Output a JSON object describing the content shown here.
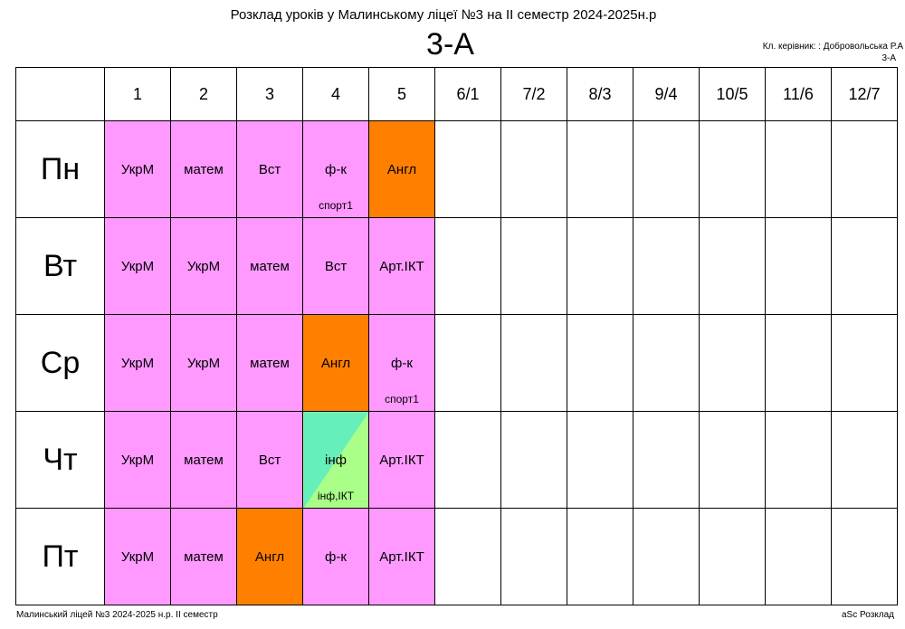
{
  "header": {
    "title": "Розклад уроків у Малинському ліцеї №3 на ІІ семестр 2024-2025н.р",
    "class_name": "3-А",
    "teacher": "Кл. керівник: : Добровольська Р.А",
    "class_small": "3-А"
  },
  "periods": [
    "1",
    "2",
    "3",
    "4",
    "5",
    "6/1",
    "7/2",
    "8/3",
    "9/4",
    "10/5",
    "11/6",
    "12/7"
  ],
  "days": [
    {
      "name": "Пн",
      "lessons": [
        {
          "subject": "УкрМ",
          "color": "pink"
        },
        {
          "subject": "матем",
          "color": "pink"
        },
        {
          "subject": "Вст",
          "color": "pink"
        },
        {
          "subject": "ф-к",
          "room": "спорт1",
          "color": "pink"
        },
        {
          "subject": "Англ",
          "color": "orange"
        }
      ]
    },
    {
      "name": "Вт",
      "lessons": [
        {
          "subject": "УкрМ",
          "color": "pink"
        },
        {
          "subject": "УкрМ",
          "color": "pink"
        },
        {
          "subject": "матем",
          "color": "pink"
        },
        {
          "subject": "Вст",
          "color": "pink"
        },
        {
          "subject": "Арт.ІКТ",
          "color": "pink"
        }
      ]
    },
    {
      "name": "Ср",
      "lessons": [
        {
          "subject": "УкрМ",
          "color": "pink"
        },
        {
          "subject": "УкрМ",
          "color": "pink"
        },
        {
          "subject": "матем",
          "color": "pink"
        },
        {
          "subject": "Англ",
          "color": "orange"
        },
        {
          "subject": "ф-к",
          "room": "спорт1",
          "color": "pink"
        }
      ]
    },
    {
      "name": "Чт",
      "lessons": [
        {
          "subject": "УкрМ",
          "color": "pink"
        },
        {
          "subject": "матем",
          "color": "pink"
        },
        {
          "subject": "Вст",
          "color": "pink"
        },
        {
          "subject": "інф",
          "room": "інф,ІКТ",
          "color": "split"
        },
        {
          "subject": "Арт.ІКТ",
          "color": "pink"
        }
      ]
    },
    {
      "name": "Пт",
      "lessons": [
        {
          "subject": "УкрМ",
          "color": "pink"
        },
        {
          "subject": "матем",
          "color": "pink"
        },
        {
          "subject": "Англ",
          "color": "orange"
        },
        {
          "subject": "ф-к",
          "color": "pink"
        },
        {
          "subject": "Арт.ІКТ",
          "color": "pink"
        }
      ]
    }
  ],
  "colors": {
    "pink": "#ff99ff",
    "orange": "#ff7f00",
    "split_a": "#66eebb",
    "split_b": "#aaff88"
  },
  "footer": {
    "left": "Малинський ліцей №3  2024-2025 н.р. ІІ семестр",
    "right": "aSc Розклад"
  }
}
